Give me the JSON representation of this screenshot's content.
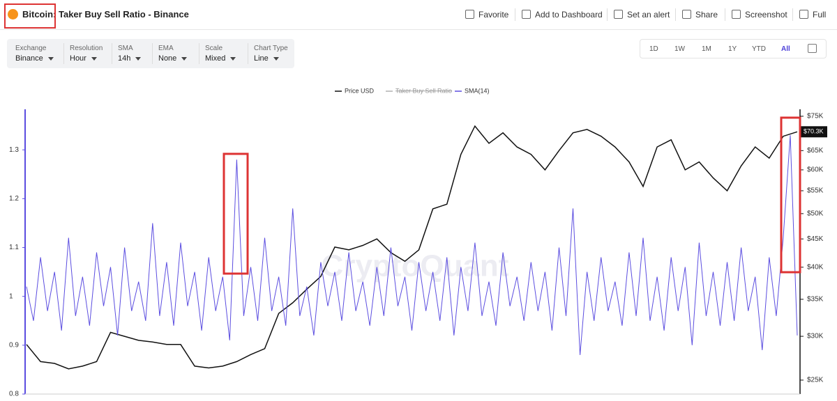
{
  "header": {
    "title": "Bitcoin: Taker Buy Sell Ratio - Binance",
    "actions": [
      "Favorite",
      "Add to Dashboard",
      "Set an alert",
      "Share",
      "Screenshot",
      "Full"
    ]
  },
  "filters": [
    {
      "label": "Exchange",
      "value": "Binance"
    },
    {
      "label": "Resolution",
      "value": "Hour"
    },
    {
      "label": "SMA",
      "value": "14h"
    },
    {
      "label": "EMA",
      "value": "None"
    },
    {
      "label": "Scale",
      "value": "Mixed"
    },
    {
      "label": "Chart Type",
      "value": "Line"
    }
  ],
  "ranges": [
    "1D",
    "1W",
    "1M",
    "1Y",
    "YTD",
    "All"
  ],
  "active_range_index": 5,
  "chart_data": {
    "type": "line",
    "watermark": "CryptoQuant",
    "series": [
      {
        "name": "Price USD",
        "color": "#111111",
        "axis": "y2",
        "values": [
          29000,
          27000,
          26800,
          26200,
          26500,
          27000,
          30500,
          30000,
          29500,
          29300,
          29000,
          29000,
          26500,
          26300,
          26500,
          27000,
          27800,
          28500,
          33000,
          34500,
          36500,
          38500,
          43500,
          43000,
          43800,
          45000,
          42500,
          41000,
          43000,
          51000,
          52000,
          64000,
          72000,
          67000,
          70000,
          66000,
          64000,
          60000,
          65000,
          70000,
          71000,
          69000,
          66000,
          62000,
          56000,
          66000,
          68000,
          60000,
          62000,
          58000,
          55000,
          61000,
          66000,
          63000,
          69000,
          70300
        ]
      },
      {
        "name": "Taker Buy Sell Ratio",
        "color": "#b0b0b0",
        "hidden": true
      },
      {
        "name": "SMA(14)",
        "color": "#5b4de0",
        "values": [
          1.02,
          0.95,
          1.08,
          0.97,
          1.05,
          0.93,
          1.12,
          0.96,
          1.04,
          0.94,
          1.09,
          0.98,
          1.06,
          0.92,
          1.1,
          0.97,
          1.03,
          0.95,
          1.15,
          0.96,
          1.07,
          0.94,
          1.11,
          0.98,
          1.05,
          0.93,
          1.08,
          0.97,
          1.04,
          0.91,
          1.28,
          0.96,
          1.06,
          0.95,
          1.12,
          0.97,
          1.04,
          0.94,
          1.18,
          0.96,
          1.02,
          0.92,
          1.07,
          0.98,
          1.05,
          0.95,
          1.09,
          0.97,
          1.03,
          0.94,
          1.06,
          0.96,
          1.1,
          0.98,
          1.04,
          0.93,
          1.07,
          0.97,
          1.05,
          0.95,
          1.08,
          0.92,
          1.06,
          0.97,
          1.11,
          0.96,
          1.03,
          0.94,
          1.09,
          0.98,
          1.04,
          0.95,
          1.07,
          0.97,
          1.05,
          0.93,
          1.1,
          0.96,
          1.18,
          0.88,
          1.05,
          0.95,
          1.08,
          0.97,
          1.03,
          0.94,
          1.09,
          0.96,
          1.12,
          0.95,
          1.04,
          0.93,
          1.08,
          0.97,
          1.06,
          0.9,
          1.11,
          0.96,
          1.05,
          0.94,
          1.07,
          0.95,
          1.1,
          0.97,
          1.04,
          0.89,
          1.08,
          0.96,
          1.12,
          1.33,
          0.92
        ]
      }
    ],
    "ylim": [
      0.8,
      1.383
    ],
    "yticks": [
      0.8,
      0.9,
      1,
      1.1,
      1.2,
      1.3
    ],
    "y2lim": [
      23590,
      77200
    ],
    "y2log": true,
    "y2ticks": [
      {
        "value": 25000,
        "label": "$25K"
      },
      {
        "value": 30000,
        "label": "$30K"
      },
      {
        "value": 35000,
        "label": "$35K"
      },
      {
        "value": 40000,
        "label": "$40K"
      },
      {
        "value": 45000,
        "label": "$45K"
      },
      {
        "value": 50000,
        "label": "$50K"
      },
      {
        "value": 55000,
        "label": "$55K"
      },
      {
        "value": 60000,
        "label": "$60K"
      },
      {
        "value": 65000,
        "label": "$65K"
      },
      {
        "value": 70000,
        "label": "$70K"
      },
      {
        "value": 75000,
        "label": "$75K"
      }
    ],
    "last_value_label": {
      "value": 70300,
      "label": "$70.3K"
    },
    "grid": false
  }
}
